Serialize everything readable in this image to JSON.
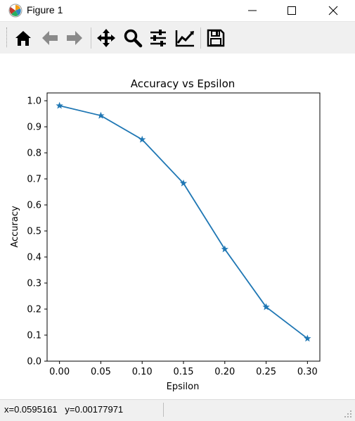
{
  "window": {
    "title": "Figure 1",
    "controls": [
      "minimize",
      "maximize",
      "close"
    ]
  },
  "toolbar": {
    "buttons": [
      {
        "name": "home-button",
        "icon": "home-icon"
      },
      {
        "name": "back-button",
        "icon": "arrow-left-icon"
      },
      {
        "name": "forward-button",
        "icon": "arrow-right-icon"
      },
      {
        "name": "pan-button",
        "icon": "move-icon"
      },
      {
        "name": "zoom-button",
        "icon": "magnifier-icon"
      },
      {
        "name": "subplots-button",
        "icon": "sliders-icon"
      },
      {
        "name": "edit-axes-button",
        "icon": "line-chart-icon"
      },
      {
        "name": "save-button",
        "icon": "floppy-disk-icon"
      }
    ]
  },
  "status": {
    "x_readout": "x=0.0595161",
    "y_readout": "y=0.00177971"
  },
  "chart_data": {
    "type": "line",
    "title": "Accuracy vs Epsilon",
    "xlabel": "Epsilon",
    "ylabel": "Accuracy",
    "x": [
      0.0,
      0.05,
      0.1,
      0.15,
      0.2,
      0.25,
      0.3
    ],
    "x_tick_labels": [
      "0.00",
      "0.05",
      "0.10",
      "0.15",
      "0.20",
      "0.25",
      "0.30"
    ],
    "y_ticks": [
      0.0,
      0.1,
      0.2,
      0.3,
      0.4,
      0.5,
      0.6,
      0.7,
      0.8,
      0.9,
      1.0
    ],
    "y_tick_labels": [
      "0.0",
      "0.1",
      "0.2",
      "0.3",
      "0.4",
      "0.5",
      "0.6",
      "0.7",
      "0.8",
      "0.9",
      "1.0"
    ],
    "series": [
      {
        "values": [
          0.981,
          0.943,
          0.851,
          0.683,
          0.43,
          0.208,
          0.087
        ],
        "marker": "star",
        "color": "#1f77b4"
      }
    ],
    "xlim": [
      -0.015,
      0.315
    ],
    "ylim": [
      0.0,
      1.03
    ],
    "grid": false,
    "legend": "none"
  }
}
